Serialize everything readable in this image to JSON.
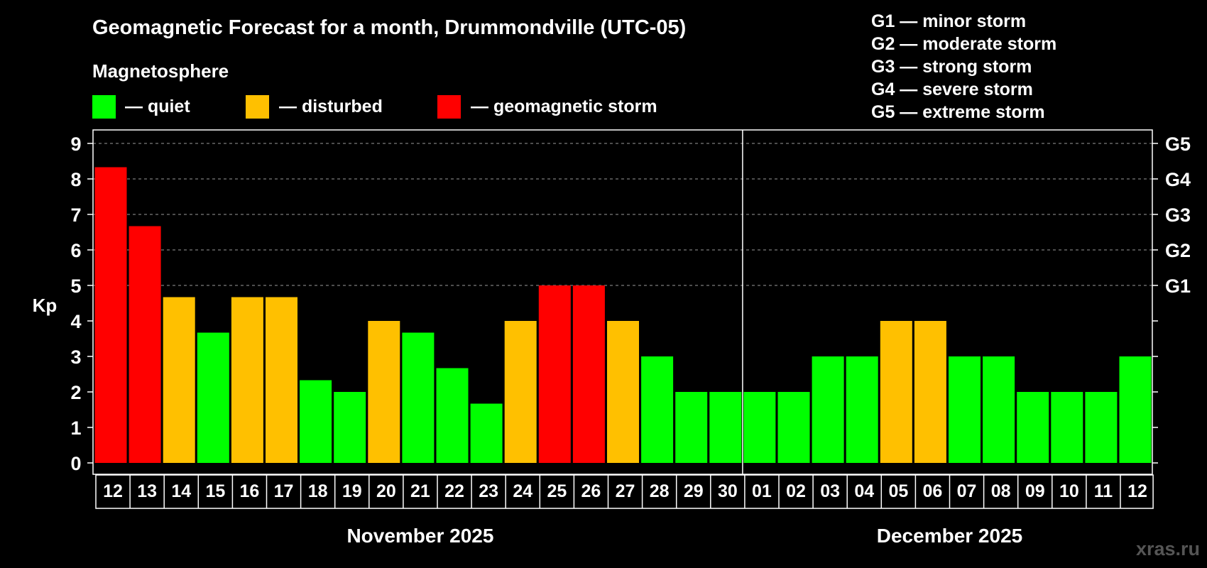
{
  "chart_data": {
    "type": "bar",
    "title": "Geomagnetic Forecast for a month, Drummondville (UTC-05)",
    "ylabel": "Kp",
    "ylim": [
      0,
      9
    ],
    "yticks": [
      "0",
      "1",
      "2",
      "3",
      "4",
      "5",
      "6",
      "7",
      "8",
      "9"
    ],
    "grid": true,
    "legend": {
      "title": "Magnetosphere",
      "items": [
        {
          "label": "— quiet",
          "color": "#00ff00"
        },
        {
          "label": "— disturbed",
          "color": "#ffc000"
        },
        {
          "label": "— geomagnetic storm",
          "color": "#ff0000"
        }
      ]
    },
    "g_scale": {
      "descriptions": [
        "G1 — minor storm",
        "G2 — moderate storm",
        "G3 — strong storm",
        "G4 — severe storm",
        "G5 — extreme storm"
      ],
      "axis_labels": [
        {
          "label": "G1",
          "kp": 5
        },
        {
          "label": "G2",
          "kp": 6
        },
        {
          "label": "G3",
          "kp": 7
        },
        {
          "label": "G4",
          "kp": 8
        },
        {
          "label": "G5",
          "kp": 9
        }
      ]
    },
    "months": [
      {
        "label": "November 2025",
        "days": [
          "12",
          "13",
          "14",
          "15",
          "16",
          "17",
          "18",
          "19",
          "20",
          "21",
          "22",
          "23",
          "24",
          "25",
          "26",
          "27",
          "28",
          "29",
          "30"
        ]
      },
      {
        "label": "December 2025",
        "days": [
          "01",
          "02",
          "03",
          "04",
          "05",
          "06",
          "07",
          "08",
          "09",
          "10",
          "11",
          "12"
        ]
      }
    ],
    "values": [
      8.33,
      6.67,
      4.67,
      3.67,
      4.67,
      4.67,
      2.33,
      2.0,
      4.0,
      3.67,
      2.67,
      1.67,
      4.0,
      5.0,
      5.0,
      4.0,
      3.0,
      2.0,
      2.0,
      2.0,
      2.0,
      3.0,
      3.0,
      4.0,
      4.0,
      3.0,
      3.0,
      2.0,
      2.0,
      2.0,
      3.0
    ],
    "status": [
      "storm",
      "storm",
      "disturbed",
      "quiet",
      "disturbed",
      "disturbed",
      "quiet",
      "quiet",
      "disturbed",
      "quiet",
      "quiet",
      "quiet",
      "disturbed",
      "storm",
      "storm",
      "disturbed",
      "quiet",
      "quiet",
      "quiet",
      "quiet",
      "quiet",
      "quiet",
      "quiet",
      "disturbed",
      "disturbed",
      "quiet",
      "quiet",
      "quiet",
      "quiet",
      "quiet",
      "quiet"
    ]
  },
  "colors": {
    "quiet": "#00ff00",
    "disturbed": "#ffc000",
    "storm": "#ff0000"
  },
  "watermark": "xras.ru"
}
